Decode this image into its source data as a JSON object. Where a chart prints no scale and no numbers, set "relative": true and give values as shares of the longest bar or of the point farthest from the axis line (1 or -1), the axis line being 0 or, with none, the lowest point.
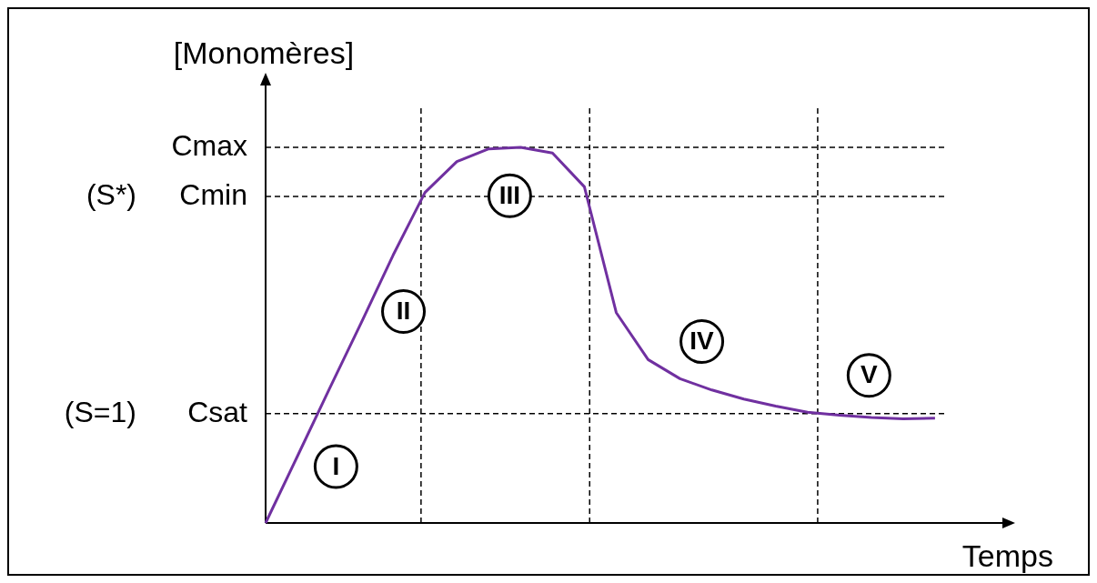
{
  "chart_data": {
    "type": "line",
    "relative": true,
    "ylabel": "[Monomères]",
    "xlabel": "Temps",
    "legend": false,
    "marker": "none",
    "line_style": "solid",
    "categories": [
      null,
      null,
      null,
      null,
      null,
      null,
      null,
      null,
      null,
      null,
      null,
      null,
      null,
      null,
      null,
      null,
      null,
      null,
      null,
      null,
      null,
      null,
      null,
      null
    ],
    "series": [
      {
        "color": "#7030a0",
        "values": [
          0,
          0.178,
          0.357,
          0.533,
          0.713,
          0.88,
          0.962,
          0.996,
          1,
          0.985,
          0.895,
          0.56,
          0.435,
          0.384,
          0.354,
          0.33,
          0.311,
          0.295,
          0.287,
          0.281,
          0.277,
          0.279,
          null,
          null
        ]
      }
    ],
    "ref_lines": [
      {
        "axis": "y",
        "value": 1,
        "label": "Cmax",
        "line_style": "dashed",
        "color": "#000000"
      },
      {
        "axis": "y",
        "value": 0.869,
        "label": "Cmin",
        "line_style": "dashed",
        "color": "#000000"
      },
      {
        "axis": "y",
        "value": 0.291,
        "label": "Csat",
        "line_style": "dashed",
        "color": "#000000"
      }
    ],
    "annotations": [
      "I",
      "II",
      "III",
      "IV",
      "V",
      "(S*)",
      "(S=1)"
    ]
  }
}
